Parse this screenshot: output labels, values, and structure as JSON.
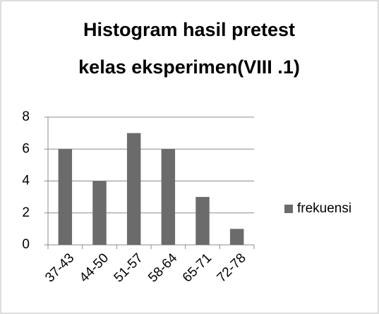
{
  "chart_data": {
    "type": "bar",
    "title": [
      "Histogram hasil pretest",
      "kelas eksperimen(VIII .1)"
    ],
    "categories": [
      "37-43",
      "44-50",
      "51-57",
      "58-64",
      "65-71",
      "72-78"
    ],
    "series": [
      {
        "name": "frekuensi",
        "color": "#6b6b6b",
        "values": [
          6,
          4,
          7,
          6,
          3,
          1
        ]
      }
    ],
    "ylim": [
      0,
      8
    ],
    "yticks": [
      0,
      2,
      4,
      6,
      8
    ],
    "grid": true,
    "legend": "right"
  }
}
